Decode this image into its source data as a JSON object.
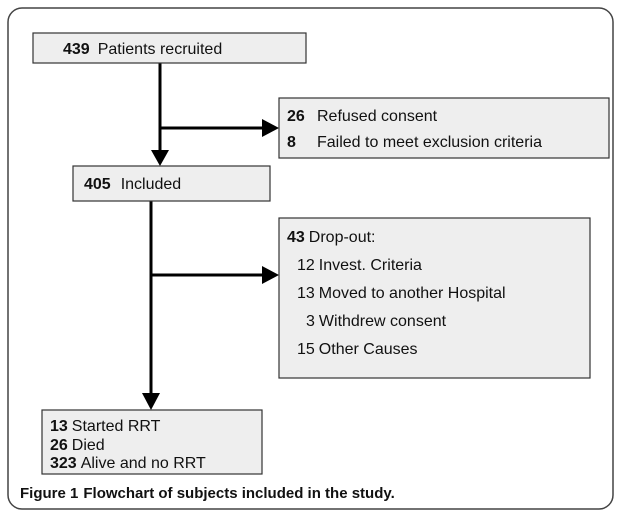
{
  "nodes": [
    {
      "items": [
        {
          "count": 439,
          "text": "Patients recruited"
        }
      ]
    },
    {
      "items": [
        {
          "count": 26,
          "text": "Refused consent"
        },
        {
          "count": 8,
          "text": "Failed to meet exclusion criteria"
        }
      ]
    },
    {
      "items": [
        {
          "count": 405,
          "text": "Included"
        }
      ]
    },
    {
      "items": [
        {
          "count": 43,
          "text": "Drop-out:"
        },
        {
          "count": 12,
          "text": "Invest. Criteria"
        },
        {
          "count": 13,
          "text": "Moved to another Hospital"
        },
        {
          "count": 3,
          "text": "Withdrew consent"
        },
        {
          "count": 15,
          "text": "Other Causes"
        }
      ]
    },
    {
      "items": [
        {
          "count": 13,
          "text": "Started RRT"
        },
        {
          "count": 26,
          "text": "Died"
        },
        {
          "count": 323,
          "text": "Alive and no RRT"
        }
      ]
    }
  ],
  "caption": {
    "label": "Figure 1",
    "text": "Flowchart of subjects included in the study."
  }
}
